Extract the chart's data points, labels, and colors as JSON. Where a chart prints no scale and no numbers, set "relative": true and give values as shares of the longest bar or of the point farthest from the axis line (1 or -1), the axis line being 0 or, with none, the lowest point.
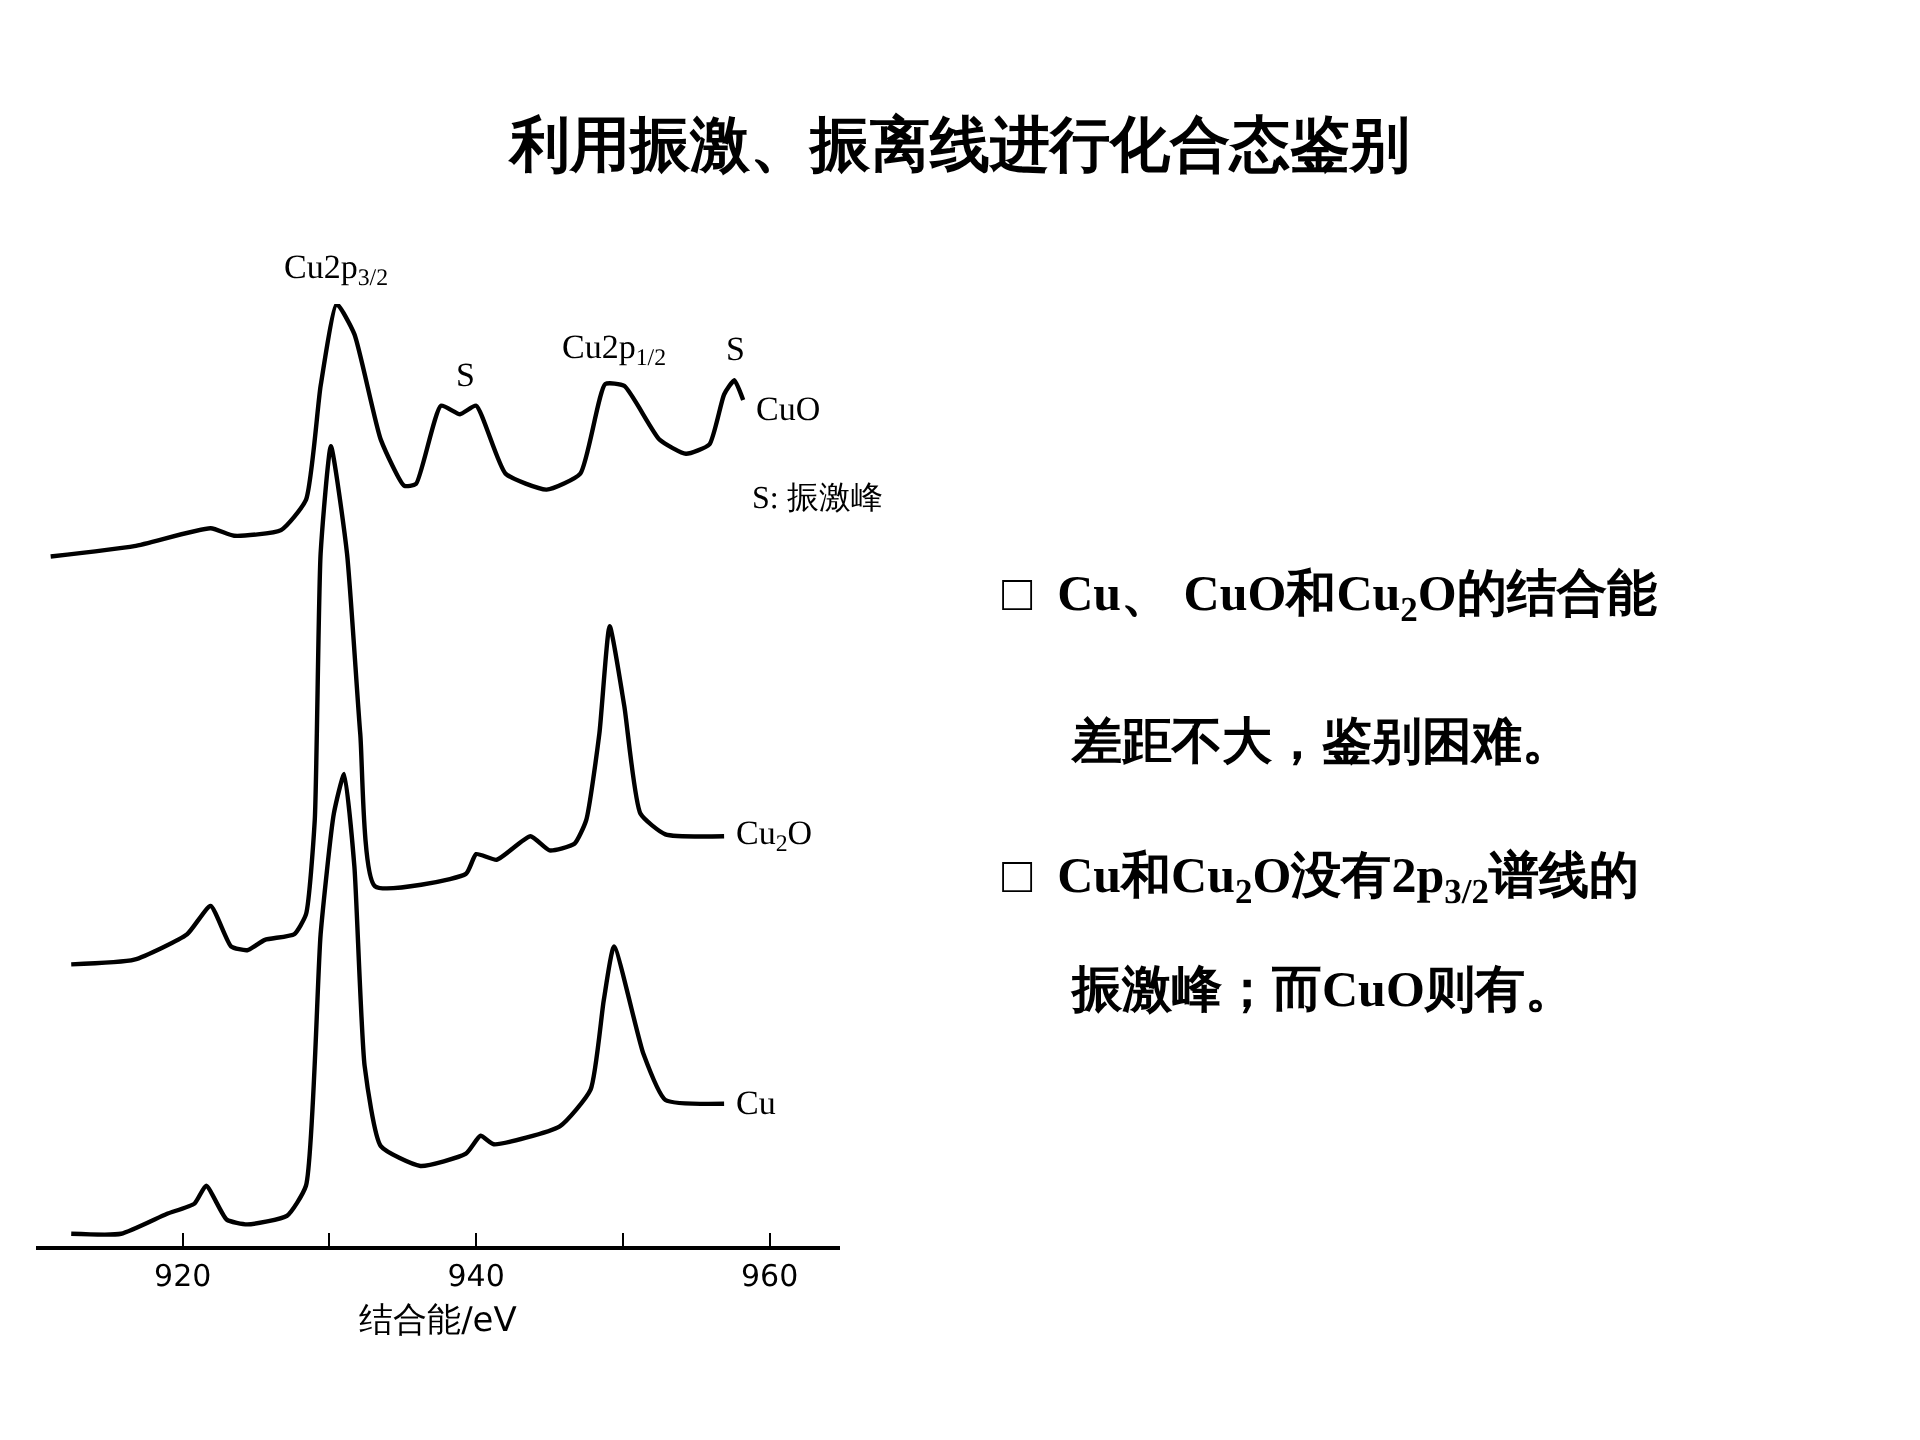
{
  "chart_data": {
    "type": "line",
    "relative": true,
    "title": "利用振激、振离线进行化合态鉴别",
    "xlabel": "结合能/eV",
    "xlim": [
      910,
      964.8
    ],
    "xticks": [
      920,
      {
        "value": 930,
        "label": null
      },
      940,
      {
        "value": 950,
        "label": null
      },
      960
    ],
    "legend": false,
    "marker": "none",
    "line_style": "solid",
    "series": [
      {
        "name": "CuO",
        "color": "#000000",
        "x": [
          911.0,
          916.7,
          921.9,
          923.5,
          926.7,
          928.4,
          929.4,
          930.5,
          931.7,
          933.5,
          935.1,
          935.9,
          937.6,
          938.9,
          940.0,
          942.0,
          944.8,
          947.1,
          948.8,
          950.1,
          952.5,
          954.3,
          955.9,
          956.9,
          957.6,
          958.2
        ],
        "values": [
          0.732,
          0.743,
          0.762,
          0.754,
          0.76,
          0.792,
          0.913,
          1.0,
          0.968,
          0.856,
          0.807,
          0.809,
          0.892,
          0.883,
          0.892,
          0.82,
          0.803,
          0.82,
          0.915,
          0.913,
          0.856,
          0.841,
          0.851,
          0.904,
          0.919,
          0.898
        ]
      },
      {
        "name": "Cu$_{2}$O",
        "color": "#000000",
        "x": [
          912.4,
          916.7,
          920.3,
          921.9,
          923.3,
          924.4,
          925.6,
          927.6,
          928.4,
          929.0,
          929.4,
          930.1,
          931.2,
          932.1,
          933.1,
          939.3,
          940.0,
          941.4,
          943.7,
          945.0,
          946.7,
          947.5,
          948.4,
          949.1,
          950.1,
          951.2,
          952.9,
          956.9
        ],
        "values": [
          0.299,
          0.304,
          0.331,
          0.361,
          0.318,
          0.314,
          0.325,
          0.331,
          0.352,
          0.452,
          0.735,
          0.849,
          0.735,
          0.544,
          0.382,
          0.395,
          0.416,
          0.41,
          0.435,
          0.42,
          0.427,
          0.452,
          0.544,
          0.658,
          0.573,
          0.459,
          0.437,
          0.435
        ]
      },
      {
        "name": "Cu",
        "color": "#000000",
        "x": [
          912.4,
          915.8,
          918.9,
          920.8,
          921.6,
          923.0,
          924.4,
          927.1,
          928.4,
          929.4,
          930.3,
          931.0,
          931.7,
          932.4,
          933.5,
          936.2,
          939.3,
          940.3,
          941.2,
          945.7,
          947.8,
          948.7,
          949.4,
          951.4,
          952.9,
          956.9
        ],
        "values": [
          0.013,
          0.013,
          0.034,
          0.045,
          0.064,
          0.028,
          0.023,
          0.032,
          0.064,
          0.331,
          0.459,
          0.501,
          0.403,
          0.191,
          0.106,
          0.085,
          0.098,
          0.117,
          0.108,
          0.127,
          0.166,
          0.261,
          0.318,
          0.204,
          0.155,
          0.151
        ]
      }
    ],
    "annotations": [
      {
        "text": "Cu2p$_{3/2}$",
        "x": 930.5,
        "y": 1.0
      },
      {
        "text": "S",
        "x": 939.3,
        "y": 0.892
      },
      {
        "text": "Cu2p$_{1/2}$",
        "x": 949.4,
        "y": 0.915
      },
      {
        "text": "S",
        "x": 957.6,
        "y": 0.919
      },
      "S: 振激峰",
      "□  Cu、 CuO和Cu$_{2}$O的结合能",
      "差距不大，鉴别困难。",
      "□  Cu和Cu$_{2}$O没有2p$_{3/2}$谱线的",
      "振激峰；而CuO则有。"
    ]
  }
}
